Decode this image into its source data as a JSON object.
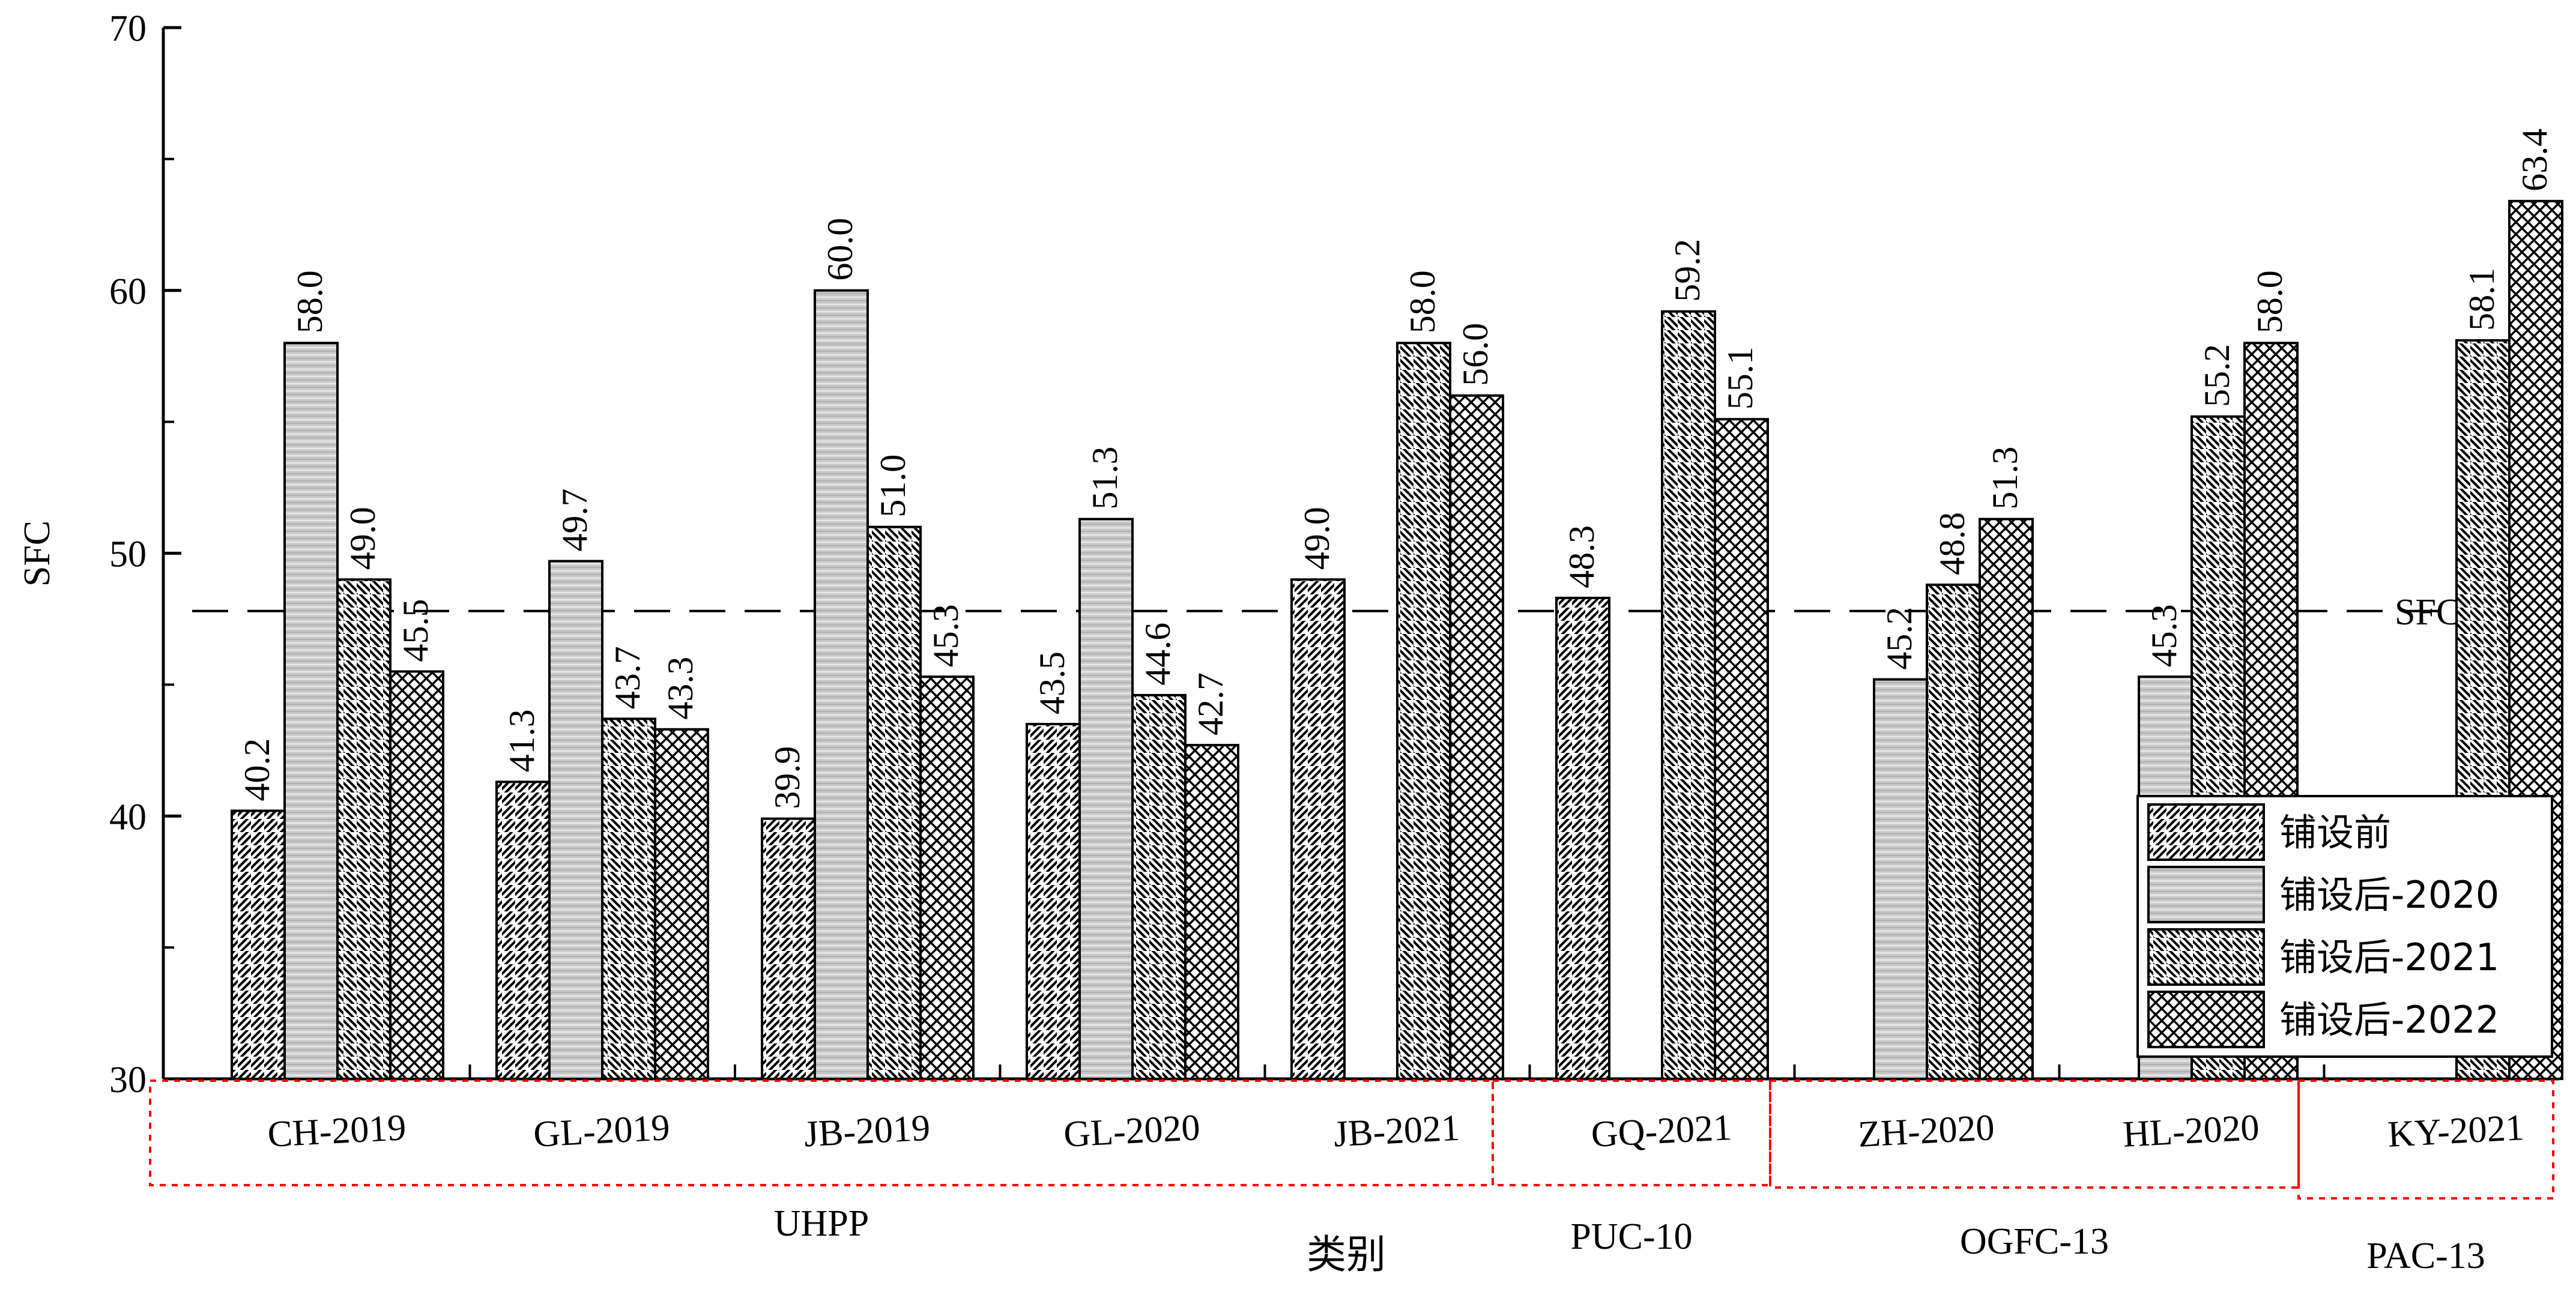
{
  "chart_data": {
    "type": "bar",
    "title": "",
    "xlabel": "类别",
    "ylabel": "SFC",
    "ylim": [
      30,
      70
    ],
    "yticks": [
      "30",
      "40",
      "50",
      "60",
      "70"
    ],
    "grid": false,
    "legend_position": "bottom-right",
    "threshold": {
      "value": 47.8,
      "label": "SFC=48"
    },
    "categories": [
      "CH-2019",
      "GL-2019",
      "JB-2019",
      "GL-2020",
      "JB-2021",
      "GQ-2021",
      "ZH-2020",
      "HL-2020",
      "KY-2021"
    ],
    "groups": [
      {
        "label": "UHPP",
        "categories": [
          "CH-2019",
          "GL-2019",
          "JB-2019",
          "GL-2020",
          "JB-2021"
        ]
      },
      {
        "label": "PUC-10",
        "categories": [
          "GQ-2021"
        ]
      },
      {
        "label": "OGFC-13",
        "categories": [
          "ZH-2020",
          "HL-2020"
        ]
      },
      {
        "label": "PAC-13",
        "categories": [
          "KY-2021"
        ]
      }
    ],
    "series": [
      {
        "name": "铺设前",
        "pattern": "diag",
        "values": [
          40.2,
          41.3,
          39.9,
          43.5,
          49.0,
          48.3,
          null,
          null,
          null
        ],
        "labels": [
          "40.2",
          "41.3",
          "39.9",
          "43.5",
          "49.0",
          "48.3",
          null,
          null,
          null
        ]
      },
      {
        "name": "铺设后-2020",
        "pattern": "gray",
        "values": [
          58.0,
          49.7,
          60.0,
          51.3,
          null,
          null,
          45.2,
          45.3,
          null
        ],
        "labels": [
          "58.0",
          "49.7",
          "60.0",
          "51.3",
          null,
          null,
          "45.2",
          "45.3",
          null
        ]
      },
      {
        "name": "铺设后-2021",
        "pattern": "backdiag",
        "values": [
          49.0,
          43.7,
          51.0,
          44.6,
          58.0,
          59.2,
          48.8,
          55.2,
          58.1
        ],
        "labels": [
          "49.0",
          "43.7",
          "51.0",
          "44.6",
          "58.0",
          "59.2",
          "48.8",
          "55.2",
          "58.1"
        ]
      },
      {
        "name": "铺设后-2022",
        "pattern": "cross",
        "values": [
          45.5,
          43.3,
          45.3,
          42.7,
          56.0,
          55.1,
          51.3,
          58.0,
          63.4
        ],
        "labels": [
          "45.5",
          "43.3",
          "45.3",
          "42.7",
          "56.0",
          "55.1",
          "51.3",
          "58.0",
          "63.4"
        ]
      }
    ],
    "colors": {
      "axis": "#000000",
      "bar_stroke": "#000000",
      "gray_fill": "#c8c8c8",
      "group_box": "#ff0000"
    }
  }
}
